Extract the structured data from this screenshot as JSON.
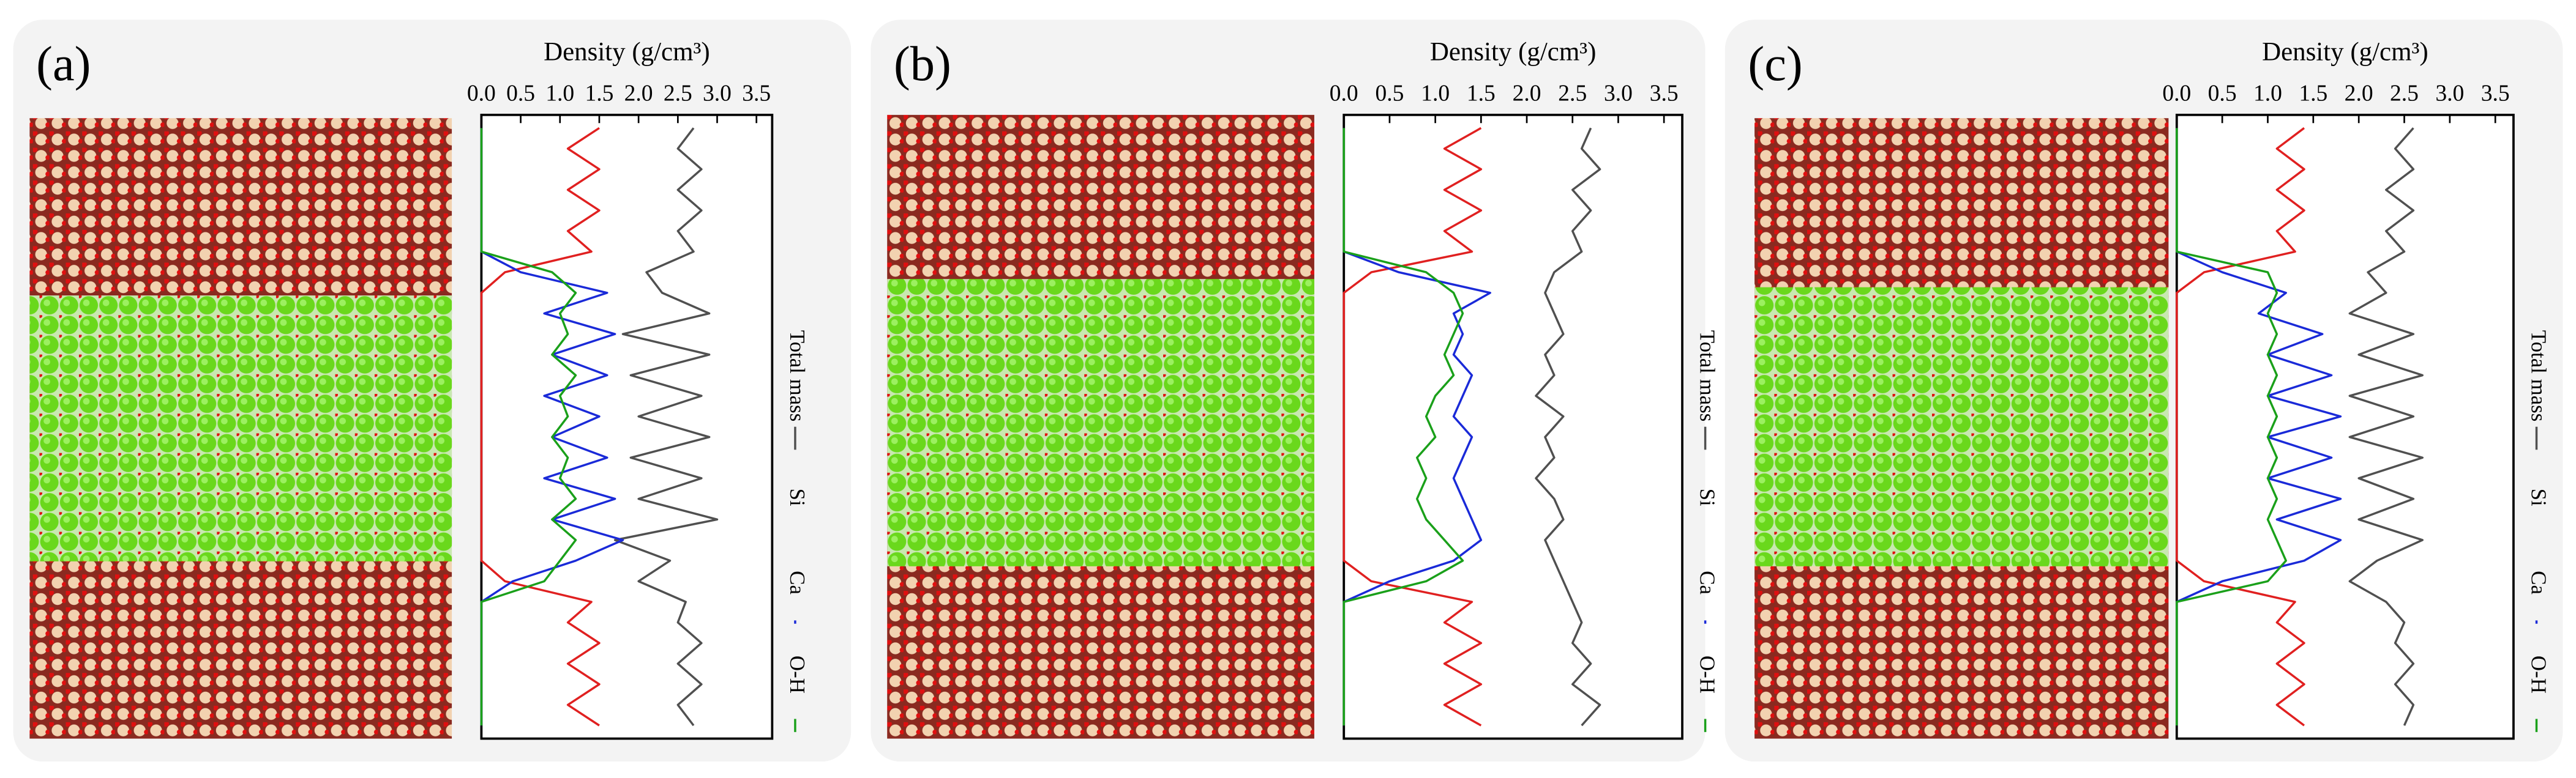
{
  "chart_data": [
    {
      "type": "line",
      "orientation": "horizontal",
      "panel_label": "(a)",
      "title": "Density (g/cm³)",
      "xlim": [
        0,
        3.7
      ],
      "xticks": [
        {
          "value": 0,
          "label": "0.0"
        },
        0.5,
        {
          "value": 1,
          "label": "1.0"
        },
        1.5,
        {
          "value": 2,
          "label": "2.0"
        },
        2.5,
        {
          "value": 3,
          "label": "3.0"
        },
        3.5
      ],
      "series": [
        {
          "name": "Total mass",
          "color": "#505050",
          "values": [
            2.7,
            2.5,
            2.8,
            2.5,
            2.8,
            2.5,
            2.7,
            2.1,
            2.3,
            2.9,
            1.8,
            2.9,
            1.9,
            2.8,
            2.0,
            2.9,
            1.9,
            2.8,
            2.0,
            3.0,
            1.7,
            2.4,
            2.0,
            2.6,
            2.5,
            2.8,
            2.5,
            2.8,
            2.5,
            2.7
          ]
        },
        {
          "name": "Si",
          "color": "#e02020",
          "values": [
            1.5,
            1.1,
            1.5,
            1.1,
            1.5,
            1.1,
            1.4,
            0.3,
            0,
            0,
            0,
            0,
            0,
            0,
            0,
            0,
            0,
            0,
            0,
            0,
            0,
            0,
            0.3,
            1.4,
            1.1,
            1.5,
            1.1,
            1.5,
            1.1,
            1.5
          ]
        },
        {
          "name": "Ca",
          "color": "#1a2ad8",
          "values": [
            0,
            0,
            0,
            0,
            0,
            0,
            0,
            0.5,
            1.6,
            0.8,
            1.7,
            0.9,
            1.6,
            0.8,
            1.5,
            0.9,
            1.6,
            0.8,
            1.7,
            0.9,
            1.8,
            1.2,
            0.4,
            0,
            0,
            0,
            0,
            0,
            0,
            0
          ]
        },
        {
          "name": "O-H",
          "color": "#1aa01a",
          "values": [
            0,
            0,
            0,
            0,
            0,
            0,
            0,
            0.9,
            1.2,
            1.0,
            1.1,
            0.9,
            1.2,
            1.0,
            1.1,
            0.9,
            1.1,
            1.0,
            1.2,
            0.9,
            1.2,
            1.0,
            0.8,
            0,
            0,
            0,
            0,
            0,
            0,
            0
          ]
        }
      ]
    },
    {
      "type": "line",
      "orientation": "horizontal",
      "panel_label": "(b)",
      "title": "Density (g/cm³)",
      "xlim": [
        0,
        3.7
      ],
      "xticks": [
        {
          "value": 0,
          "label": "0.0"
        },
        0.5,
        {
          "value": 1,
          "label": "1.0"
        },
        1.5,
        {
          "value": 2,
          "label": "2.0"
        },
        2.5,
        {
          "value": 3,
          "label": "3.0"
        },
        3.5
      ],
      "series": [
        {
          "name": "Total mass",
          "color": "#505050",
          "values": [
            2.7,
            2.6,
            2.8,
            2.5,
            2.7,
            2.5,
            2.6,
            2.3,
            2.2,
            2.3,
            2.4,
            2.2,
            2.3,
            2.1,
            2.4,
            2.2,
            2.3,
            2.1,
            2.3,
            2.4,
            2.2,
            2.3,
            2.4,
            2.5,
            2.6,
            2.5,
            2.7,
            2.5,
            2.8,
            2.6
          ]
        },
        {
          "name": "Si",
          "color": "#e02020",
          "values": [
            1.5,
            1.1,
            1.5,
            1.1,
            1.5,
            1.1,
            1.4,
            0.3,
            0,
            0,
            0,
            0,
            0,
            0,
            0,
            0,
            0,
            0,
            0,
            0,
            0,
            0,
            0.3,
            1.4,
            1.1,
            1.5,
            1.1,
            1.5,
            1.1,
            1.5
          ]
        },
        {
          "name": "Ca",
          "color": "#1a2ad8",
          "values": [
            0,
            0,
            0,
            0,
            0,
            0,
            0,
            0.6,
            1.6,
            1.2,
            1.3,
            1.2,
            1.4,
            1.3,
            1.2,
            1.4,
            1.3,
            1.2,
            1.3,
            1.4,
            1.5,
            1.2,
            0.5,
            0,
            0,
            0,
            0,
            0,
            0,
            0
          ]
        },
        {
          "name": "O-H",
          "color": "#1aa01a",
          "values": [
            0,
            0,
            0,
            0,
            0,
            0,
            0,
            0.9,
            1.2,
            1.3,
            1.2,
            1.1,
            1.2,
            1.0,
            0.9,
            1.0,
            0.8,
            0.9,
            0.8,
            0.9,
            1.1,
            1.3,
            0.9,
            0,
            0,
            0,
            0,
            0,
            0,
            0
          ]
        }
      ]
    },
    {
      "type": "line",
      "orientation": "horizontal",
      "panel_label": "(c)",
      "title": "Density (g/cm³)",
      "xlim": [
        0,
        3.7
      ],
      "xticks": [
        {
          "value": 0,
          "label": "0.0"
        },
        0.5,
        {
          "value": 1,
          "label": "1.0"
        },
        1.5,
        {
          "value": 2,
          "label": "2.0"
        },
        2.5,
        {
          "value": 3,
          "label": "3.0"
        },
        3.5
      ],
      "series": [
        {
          "name": "Total mass",
          "color": "#505050",
          "values": [
            2.6,
            2.4,
            2.6,
            2.3,
            2.6,
            2.3,
            2.5,
            2.1,
            2.3,
            1.9,
            2.6,
            2.0,
            2.7,
            1.9,
            2.6,
            1.9,
            2.7,
            2.0,
            2.6,
            2.0,
            2.7,
            2.2,
            1.9,
            2.3,
            2.5,
            2.4,
            2.6,
            2.4,
            2.6,
            2.5
          ]
        },
        {
          "name": "Si",
          "color": "#e02020",
          "values": [
            1.4,
            1.1,
            1.4,
            1.1,
            1.4,
            1.1,
            1.3,
            0.3,
            0,
            0,
            0,
            0,
            0,
            0,
            0,
            0,
            0,
            0,
            0,
            0,
            0,
            0,
            0.3,
            1.3,
            1.1,
            1.4,
            1.1,
            1.4,
            1.1,
            1.4
          ]
        },
        {
          "name": "Ca",
          "color": "#1a2ad8",
          "values": [
            0,
            0,
            0,
            0,
            0,
            0,
            0,
            0.5,
            1.2,
            0.9,
            1.6,
            1.0,
            1.7,
            1.0,
            1.8,
            1.0,
            1.7,
            1.0,
            1.8,
            1.1,
            1.8,
            1.4,
            0.5,
            0,
            0,
            0,
            0,
            0,
            0,
            0
          ]
        },
        {
          "name": "O-H",
          "color": "#1aa01a",
          "values": [
            0,
            0,
            0,
            0,
            0,
            0,
            0,
            1.0,
            1.1,
            1.0,
            1.1,
            1.0,
            1.1,
            1.0,
            1.1,
            1.0,
            1.1,
            1.0,
            1.1,
            1.0,
            1.1,
            1.2,
            1.0,
            0,
            0,
            0,
            0,
            0,
            0,
            0
          ]
        }
      ]
    }
  ]
}
